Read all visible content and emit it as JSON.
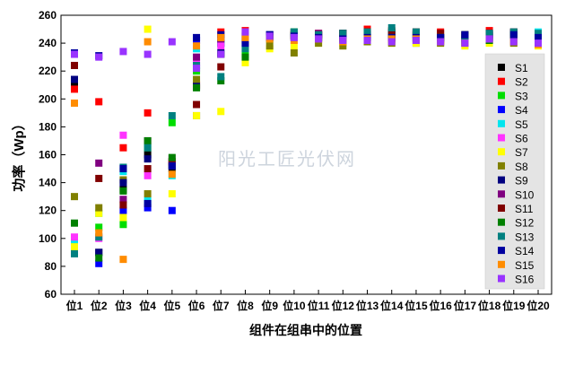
{
  "chart_data": {
    "type": "scatter",
    "ylabel": "功率（Wp）",
    "xlabel": "组件在组串中的位置",
    "watermark": "阳光工匠光伏网",
    "ylim": [
      60,
      260
    ],
    "yticks": [
      60,
      80,
      100,
      120,
      140,
      160,
      180,
      200,
      220,
      240,
      260
    ],
    "categories": [
      "位1",
      "位2",
      "位3",
      "位4",
      "位5",
      "位6",
      "位7",
      "位8",
      "位9",
      "位10",
      "位11",
      "位12",
      "位13",
      "位14",
      "位15",
      "位16",
      "位17",
      "位18",
      "位19",
      "位20"
    ],
    "legend_position": "right",
    "grid": false,
    "series": [
      {
        "name": "S1",
        "color": "#000000",
        "values": [
          212,
          90,
          135,
          160,
          150,
          188,
          240,
          245,
          245,
          248,
          246,
          247,
          244,
          243,
          246,
          243,
          240,
          246,
          246,
          244
        ]
      },
      {
        "name": "S2",
        "color": "#ff0000",
        "values": [
          207,
          198,
          165,
          190,
          155,
          210,
          248,
          249,
          245,
          246,
          247,
          246,
          250,
          249,
          248,
          248,
          244,
          249,
          246,
          243
        ]
      },
      {
        "name": "S3",
        "color": "#00dd00",
        "values": [
          97,
          108,
          110,
          165,
          183,
          220,
          232,
          232,
          243,
          248,
          246,
          246,
          244,
          248,
          246,
          242,
          243,
          244,
          247,
          244
        ]
      },
      {
        "name": "S4",
        "color": "#0000ff",
        "values": [
          100,
          82,
          120,
          122,
          120,
          242,
          240,
          242,
          246,
          244,
          245,
          244,
          245,
          243,
          240,
          243,
          242,
          244,
          247,
          246
        ]
      },
      {
        "name": "S5",
        "color": "#00e5ee",
        "values": [
          99,
          118,
          148,
          127,
          145,
          236,
          240,
          243,
          244,
          245,
          244,
          242,
          244,
          246,
          244,
          241,
          240,
          246,
          245,
          248
        ]
      },
      {
        "name": "S6",
        "color": "#ff33ff",
        "values": [
          101,
          100,
          174,
          145,
          157,
          226,
          238,
          248,
          244,
          247,
          245,
          245,
          247,
          244,
          244,
          242,
          240,
          245,
          247,
          243
        ]
      },
      {
        "name": "S7",
        "color": "#ffff00",
        "values": [
          94,
          118,
          115,
          250,
          132,
          188,
          191,
          226,
          236,
          238,
          240,
          240,
          242,
          240,
          240,
          240,
          238,
          240,
          240,
          238
        ]
      },
      {
        "name": "S8",
        "color": "#808000",
        "values": [
          130,
          122,
          142,
          132,
          153,
          214,
          232,
          237,
          238,
          233,
          240,
          238,
          241,
          240,
          242,
          240,
          240,
          242,
          240,
          240
        ]
      },
      {
        "name": "S9",
        "color": "#000080",
        "values": [
          214,
          90,
          140,
          157,
          152,
          209,
          233,
          240,
          244,
          245,
          246,
          247,
          246,
          247,
          247,
          244,
          246,
          247,
          248,
          246
        ]
      },
      {
        "name": "S10",
        "color": "#800080",
        "values": [
          224,
          154,
          128,
          170,
          155,
          230,
          243,
          243,
          246,
          245,
          247,
          245,
          246,
          244,
          246,
          243,
          245,
          245,
          245,
          246
        ]
      },
      {
        "name": "S11",
        "color": "#800000",
        "values": [
          224,
          143,
          124,
          150,
          155,
          196,
          223,
          245,
          245,
          246,
          246,
          247,
          248,
          248,
          248,
          247,
          246,
          247,
          248,
          246
        ]
      },
      {
        "name": "S12",
        "color": "#008000",
        "values": [
          111,
          86,
          134,
          170,
          158,
          208,
          213,
          230,
          245,
          246,
          244,
          243,
          244,
          244,
          243,
          244,
          246,
          242,
          246,
          245
        ]
      },
      {
        "name": "S13",
        "color": "#008080",
        "values": [
          89,
          101,
          151,
          165,
          188,
          224,
          216,
          236,
          246,
          248,
          246,
          247,
          248,
          251,
          248,
          244,
          244,
          247,
          248,
          247
        ]
      },
      {
        "name": "S14",
        "color": "#0000a0",
        "values": [
          233,
          231,
          150,
          125,
          152,
          244,
          246,
          240,
          246,
          245,
          244,
          243,
          244,
          244,
          244,
          244,
          246,
          243,
          246,
          244
        ]
      },
      {
        "name": "S15",
        "color": "#ff8c00",
        "values": [
          197,
          104,
          85,
          241,
          146,
          238,
          244,
          244,
          243,
          242,
          243,
          241,
          243,
          243,
          243,
          241,
          240,
          243,
          241,
          239
        ]
      },
      {
        "name": "S16",
        "color": "#9933ff",
        "values": [
          232,
          230,
          234,
          232,
          241,
          222,
          232,
          248,
          245,
          244,
          243,
          242,
          242,
          241,
          242,
          241,
          240,
          243,
          241,
          240
        ]
      }
    ]
  }
}
